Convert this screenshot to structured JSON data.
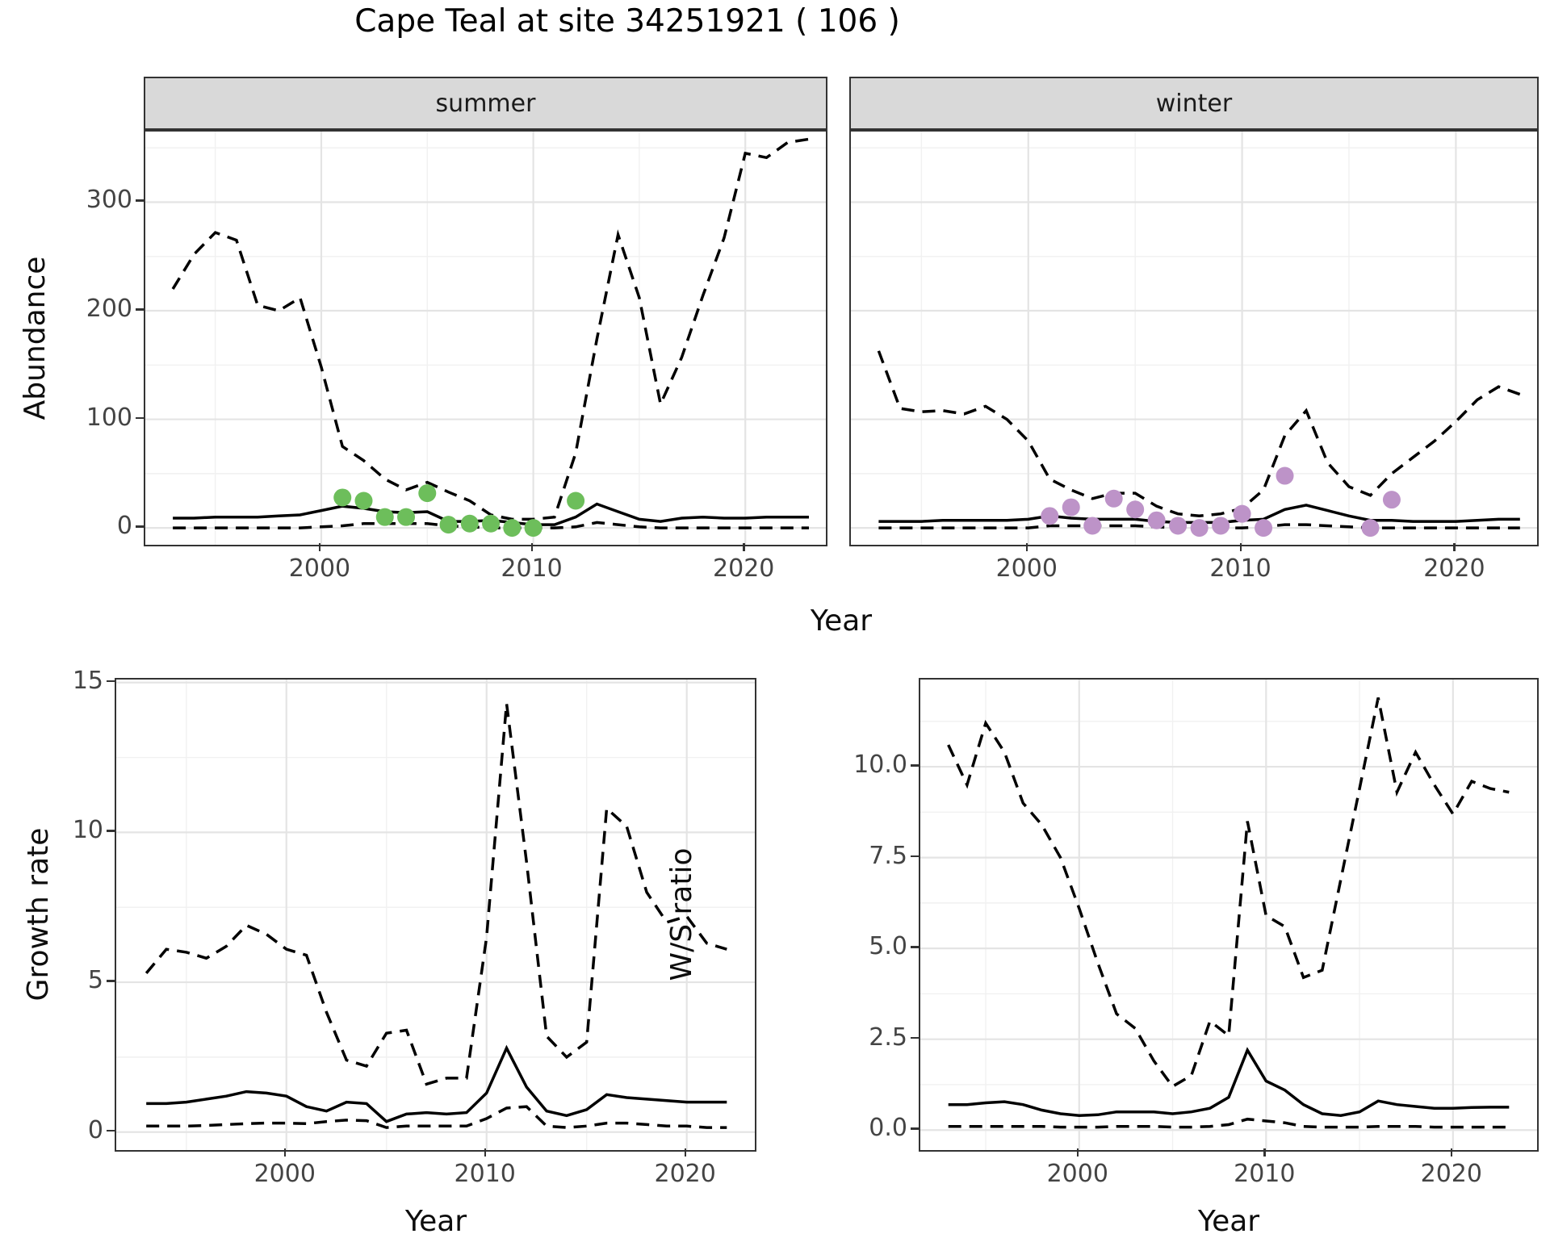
{
  "title": "Cape Teal at site 34251921 ( 106 )",
  "facets": {
    "summer": "summer",
    "winter": "winter"
  },
  "axis_titles": {
    "abundance": "Abundance",
    "growth": "Growth rate",
    "ws": "W/S ratio",
    "year": "Year"
  },
  "colors": {
    "summer_points": "#6dbe5b",
    "winter_points": "#bd93c8",
    "line": "#000000",
    "strip_fill": "#d9d9d9",
    "panel_border": "#333333",
    "tick_text": "#444444"
  },
  "chart_data": [
    {
      "type": "line",
      "facet": "summer",
      "xlabel": "Year",
      "ylabel": "Abundance",
      "xlim": [
        1991.7,
        2023.8
      ],
      "ylim": [
        -15.5,
        365
      ],
      "x_major": [
        2000,
        2010,
        2020
      ],
      "x_minor": [
        1995,
        2005,
        2015
      ],
      "y_major": [
        0,
        100,
        200,
        300
      ],
      "y_minor": [
        50,
        150,
        250,
        350
      ],
      "x_tick_labels": [
        "2000",
        "2010",
        "2020"
      ],
      "y_tick_labels": [
        "0",
        "100",
        "200",
        "300"
      ],
      "grid": true,
      "legend": "none",
      "x": [
        1993,
        1994,
        1995,
        1996,
        1997,
        1998,
        1999,
        2000,
        2001,
        2002,
        2003,
        2004,
        2005,
        2006,
        2007,
        2008,
        2009,
        2010,
        2011,
        2012,
        2013,
        2014,
        2015,
        2016,
        2017,
        2018,
        2019,
        2020,
        2021,
        2022,
        2023
      ],
      "series": [
        {
          "name": "upper_ci",
          "style": "dashed",
          "values": [
            220,
            252,
            272,
            265,
            205,
            200,
            212,
            148,
            75,
            62,
            45,
            35,
            42,
            33,
            25,
            12,
            8,
            8,
            10,
            69,
            174,
            270,
            212,
            114,
            157,
            214,
            267,
            345,
            341,
            355,
            358
          ]
        },
        {
          "name": "median",
          "style": "solid",
          "values": [
            9,
            9,
            10,
            10,
            10,
            11,
            12,
            16,
            20,
            18,
            15,
            14,
            15,
            6,
            6,
            7,
            5,
            3,
            3,
            10,
            22,
            15,
            8,
            6,
            9,
            10,
            9,
            9,
            10,
            10,
            10
          ]
        },
        {
          "name": "lower_ci",
          "style": "dashed",
          "values": [
            0,
            0,
            0,
            0,
            0,
            0,
            0,
            1,
            2,
            4,
            4,
            4,
            4,
            2,
            1,
            0,
            0,
            0,
            0,
            1,
            5,
            3,
            1,
            0,
            0,
            0,
            0,
            0,
            0,
            0,
            0
          ]
        }
      ],
      "points": {
        "name": "observed_counts",
        "color": "#6dbe5b",
        "x": [
          2001,
          2002,
          2003,
          2004,
          2005,
          2006,
          2007,
          2008,
          2009,
          2010,
          2012
        ],
        "y": [
          28,
          25,
          10,
          10,
          32,
          3,
          4,
          4,
          0,
          0,
          25
        ]
      }
    },
    {
      "type": "line",
      "facet": "winter",
      "xlabel": "Year",
      "ylabel": "Abundance",
      "xlim": [
        1991.7,
        2023.8
      ],
      "ylim": [
        -15.5,
        365
      ],
      "x_major": [
        2000,
        2010,
        2020
      ],
      "x_minor": [
        1995,
        2005,
        2015
      ],
      "y_major": [
        0,
        100,
        200,
        300
      ],
      "y_minor": [
        50,
        150,
        250,
        350
      ],
      "x_tick_labels": [
        "2000",
        "2010",
        "2020"
      ],
      "y_tick_labels": [],
      "grid": true,
      "legend": "none",
      "x": [
        1993,
        1994,
        1995,
        1996,
        1997,
        1998,
        1999,
        2000,
        2001,
        2002,
        2003,
        2004,
        2005,
        2006,
        2007,
        2008,
        2009,
        2010,
        2011,
        2012,
        2013,
        2014,
        2015,
        2016,
        2017,
        2018,
        2019,
        2020,
        2021,
        2022,
        2023
      ],
      "series": [
        {
          "name": "upper_ci",
          "style": "dashed",
          "values": [
            163,
            110,
            107,
            108,
            105,
            112,
            100,
            80,
            45,
            35,
            27,
            32,
            32,
            20,
            13,
            11,
            13,
            18,
            35,
            85,
            108,
            60,
            38,
            30,
            50,
            65,
            80,
            98,
            118,
            130,
            123
          ]
        },
        {
          "name": "median",
          "style": "solid",
          "values": [
            6,
            6,
            6,
            7,
            7,
            7,
            7,
            8,
            11,
            9,
            8,
            8,
            8,
            6,
            5,
            5,
            5,
            7,
            8,
            17,
            21,
            16,
            11,
            7,
            7,
            6,
            6,
            6,
            7,
            8,
            8
          ]
        },
        {
          "name": "lower_ci",
          "style": "dashed",
          "values": [
            0,
            0,
            0,
            0,
            0,
            0,
            0,
            0,
            2,
            2,
            2,
            2,
            2,
            1,
            0,
            0,
            0,
            0,
            1,
            3,
            3,
            2,
            1,
            0,
            0,
            0,
            0,
            0,
            0,
            0,
            0
          ]
        }
      ],
      "points": {
        "name": "observed_counts",
        "color": "#bd93c8",
        "x": [
          2001,
          2002,
          2003,
          2004,
          2005,
          2006,
          2007,
          2008,
          2009,
          2010,
          2011,
          2012,
          2016,
          2017
        ],
        "y": [
          11,
          19,
          2,
          27,
          17,
          7,
          2,
          0,
          2,
          13,
          0,
          48,
          0,
          26
        ]
      }
    },
    {
      "type": "line",
      "facet": null,
      "xlabel": "Year",
      "ylabel": "Growth rate",
      "xlim": [
        1991.5,
        2023.4
      ],
      "ylim": [
        -0.6,
        15.1
      ],
      "x_major": [
        2000,
        2010,
        2020
      ],
      "x_minor": [
        1995,
        2005,
        2015
      ],
      "y_major": [
        0,
        5,
        10,
        15
      ],
      "y_minor": [
        2.5,
        7.5,
        12.5
      ],
      "x_tick_labels": [
        "2000",
        "2010",
        "2020"
      ],
      "y_tick_labels": [
        "0",
        "5",
        "10",
        "15"
      ],
      "grid": true,
      "legend": "none",
      "x": [
        1993,
        1994,
        1995,
        1996,
        1997,
        1998,
        1999,
        2000,
        2001,
        2002,
        2003,
        2004,
        2005,
        2006,
        2007,
        2008,
        2009,
        2010,
        2011,
        2012,
        2013,
        2014,
        2015,
        2016,
        2017,
        2018,
        2019,
        2020,
        2021,
        2022
      ],
      "series": [
        {
          "name": "upper_ci",
          "style": "dashed",
          "values": [
            5.3,
            6.1,
            6.0,
            5.8,
            6.2,
            6.9,
            6.6,
            6.1,
            5.9,
            4.0,
            2.4,
            2.2,
            3.3,
            3.4,
            1.6,
            1.8,
            1.8,
            6.5,
            14.3,
            9.0,
            3.2,
            2.5,
            3.0,
            10.8,
            10.2,
            8.0,
            7.0,
            7.2,
            6.3,
            6.1
          ]
        },
        {
          "name": "median",
          "style": "solid",
          "values": [
            0.95,
            0.95,
            1.0,
            1.1,
            1.2,
            1.35,
            1.3,
            1.2,
            0.85,
            0.7,
            1.0,
            0.95,
            0.35,
            0.6,
            0.65,
            0.6,
            0.65,
            1.3,
            2.8,
            1.5,
            0.7,
            0.55,
            0.75,
            1.25,
            1.15,
            1.1,
            1.05,
            1.0,
            1.0,
            1.0
          ]
        },
        {
          "name": "lower_ci",
          "style": "dashed",
          "values": [
            0.2,
            0.2,
            0.2,
            0.22,
            0.25,
            0.28,
            0.3,
            0.3,
            0.28,
            0.35,
            0.4,
            0.38,
            0.15,
            0.2,
            0.2,
            0.2,
            0.2,
            0.45,
            0.8,
            0.85,
            0.2,
            0.15,
            0.2,
            0.3,
            0.3,
            0.25,
            0.2,
            0.2,
            0.15,
            0.15
          ]
        }
      ],
      "points": null
    },
    {
      "type": "line",
      "facet": null,
      "xlabel": "Year",
      "ylabel": "W/S ratio",
      "xlim": [
        1991.5,
        2024.5
      ],
      "ylim": [
        -0.55,
        12.4
      ],
      "x_major": [
        2000,
        2010,
        2020
      ],
      "x_minor": [
        1995,
        2005,
        2015
      ],
      "y_major": [
        0,
        2.5,
        5,
        7.5,
        10
      ],
      "y_minor": [
        1.25,
        3.75,
        6.25,
        8.75,
        11.25
      ],
      "x_tick_labels": [
        "2000",
        "2010",
        "2020"
      ],
      "y_tick_labels": [
        "0.0",
        "2.5",
        "5.0",
        "7.5",
        "10.0"
      ],
      "grid": true,
      "legend": "none",
      "x": [
        1993,
        1994,
        1995,
        1996,
        1997,
        1998,
        1999,
        2000,
        2001,
        2002,
        2003,
        2004,
        2005,
        2006,
        2007,
        2008,
        2009,
        2010,
        2011,
        2012,
        2013,
        2014,
        2015,
        2016,
        2017,
        2018,
        2019,
        2020,
        2021,
        2022,
        2023
      ],
      "series": [
        {
          "name": "upper_ci",
          "style": "dashed",
          "values": [
            10.6,
            9.5,
            11.2,
            10.4,
            9.0,
            8.4,
            7.5,
            6.1,
            4.6,
            3.2,
            2.8,
            1.9,
            1.2,
            1.5,
            3.0,
            2.6,
            8.5,
            5.9,
            5.6,
            4.2,
            4.4,
            6.9,
            9.4,
            11.9,
            9.3,
            10.4,
            9.5,
            8.7,
            9.6,
            9.4,
            9.3
          ]
        },
        {
          "name": "median",
          "style": "solid",
          "values": [
            0.7,
            0.7,
            0.75,
            0.78,
            0.7,
            0.55,
            0.45,
            0.4,
            0.42,
            0.5,
            0.5,
            0.5,
            0.45,
            0.5,
            0.6,
            0.9,
            2.2,
            1.35,
            1.1,
            0.7,
            0.45,
            0.4,
            0.5,
            0.8,
            0.7,
            0.65,
            0.6,
            0.6,
            0.62,
            0.63,
            0.63
          ]
        },
        {
          "name": "lower_ci",
          "style": "dashed",
          "values": [
            0.1,
            0.1,
            0.1,
            0.1,
            0.1,
            0.1,
            0.08,
            0.08,
            0.08,
            0.1,
            0.1,
            0.1,
            0.08,
            0.08,
            0.1,
            0.15,
            0.3,
            0.25,
            0.2,
            0.1,
            0.08,
            0.08,
            0.08,
            0.1,
            0.1,
            0.1,
            0.08,
            0.08,
            0.08,
            0.08,
            0.08
          ]
        }
      ],
      "points": null
    }
  ]
}
